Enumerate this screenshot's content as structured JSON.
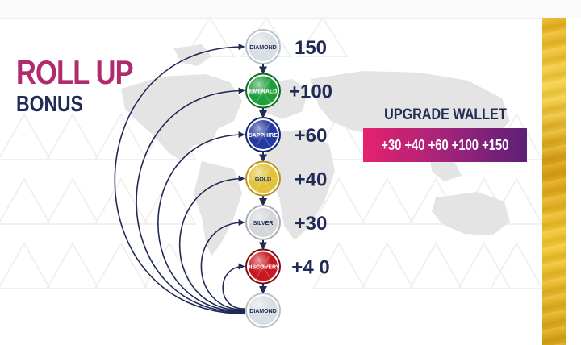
{
  "heading": {
    "title": "ROLL UP",
    "subtitle": "BONUS"
  },
  "tiers": [
    {
      "name": "DIAMOND",
      "value": "150",
      "color": "#d9dee4",
      "rim": "#b8c0c8",
      "text": "#1f2a55"
    },
    {
      "name": "EMERALD",
      "value": "+100",
      "color": "#1f9e3a",
      "rim": "#0c6a22",
      "text": "#ffffff"
    },
    {
      "name": "SAPPHIRE",
      "value": "+60",
      "color": "#243a9e",
      "rim": "#152470",
      "text": "#ffffff"
    },
    {
      "name": "GOLD",
      "value": "+40",
      "color": "#e2c23a",
      "rim": "#b89418",
      "text": "#1f2a55"
    },
    {
      "name": "SILVER",
      "value": "+30",
      "color": "#d4d6da",
      "rim": "#a9acb2",
      "text": "#1f2a55"
    },
    {
      "name": "DISCOVERY",
      "value": "+4 0",
      "color": "#c8171e",
      "rim": "#7d0c10",
      "text": "#ffffff"
    },
    {
      "name": "DIAMOND",
      "value": "",
      "color": "#d9dee4",
      "rim": "#b8c0c8",
      "text": "#1f2a55"
    }
  ],
  "wallet": {
    "title": "UPGRADE WALLET",
    "values": "+30 +40 +60 +100 +150"
  },
  "colors": {
    "navy": "#1f2a55",
    "magenta": "#b02a6c",
    "map": "#e4e4e4",
    "pattern": "#f0f0f0",
    "gold": "#e8b321"
  }
}
